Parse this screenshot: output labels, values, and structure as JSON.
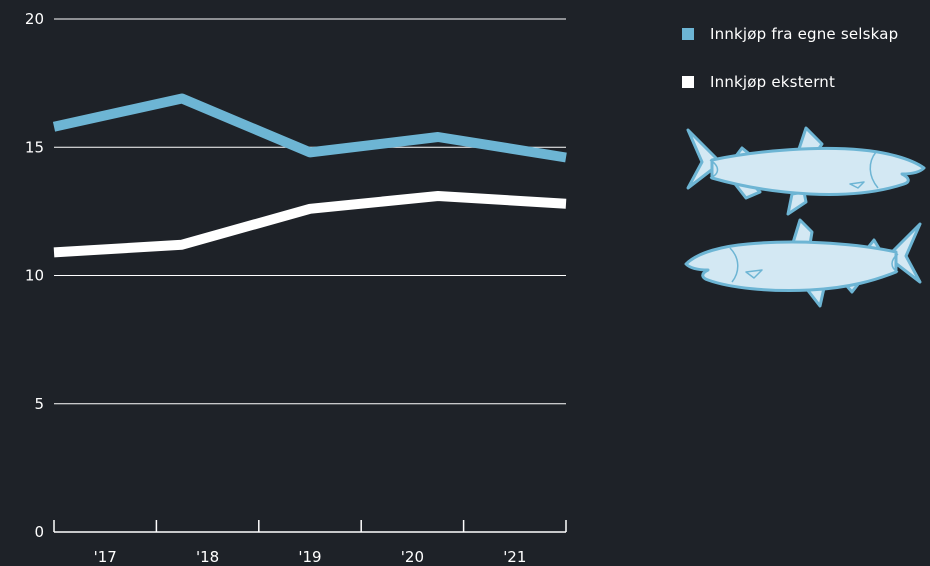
{
  "chart_data": {
    "type": "line",
    "title": "",
    "xlabel": "",
    "ylabel": "",
    "categories": [
      "'17",
      "'18",
      "'19",
      "'20",
      "'21"
    ],
    "ylim": [
      0,
      20
    ],
    "yticks": [
      0,
      5,
      10,
      15,
      20
    ],
    "grid": "horizontal",
    "legend_position": "right",
    "series": [
      {
        "name": "Innkjøp fra egne selskap",
        "color": "#6db5d4",
        "points": [
          [
            2016.5,
            15.8
          ],
          [
            2017.75,
            16.9
          ],
          [
            2019.0,
            14.8
          ],
          [
            2020.25,
            15.4
          ],
          [
            2021.5,
            14.6
          ]
        ]
      },
      {
        "name": "Innkjøp eksternt",
        "color": "#ffffff",
        "points": [
          [
            2016.5,
            10.9
          ],
          [
            2017.75,
            11.2
          ],
          [
            2019.0,
            12.6
          ],
          [
            2020.25,
            13.1
          ],
          [
            2021.5,
            12.8
          ]
        ]
      }
    ]
  },
  "illustration": {
    "icon": "salmon-fish-icon",
    "color": "#6db5d4",
    "fill": "#d3e8f3"
  },
  "colors": {
    "background": "#1e2228",
    "axis": "#ffffff"
  }
}
